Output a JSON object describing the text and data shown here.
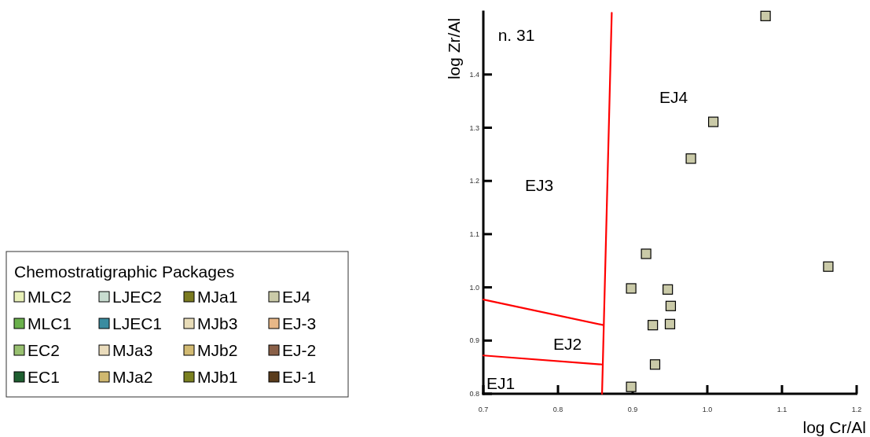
{
  "chart_data": {
    "type": "scatter",
    "xlabel": "log Cr/Al",
    "ylabel": "log Zr/Al",
    "legend_title": "Chemostratigraphic Packages",
    "xlim": [
      0.7,
      1.2
    ],
    "ylim": [
      0.8,
      1.52
    ],
    "xticks": [
      {
        "value": 0.7,
        "label": "0.7"
      },
      {
        "value": 0.8,
        "label": "0.8"
      },
      {
        "value": 0.9,
        "label": "0.9"
      },
      {
        "value": 1.0,
        "label": "1.0"
      },
      {
        "value": 1.1,
        "label": "1.1"
      },
      {
        "value": 1.2,
        "label": "1.2"
      }
    ],
    "yticks": [
      {
        "value": 0.8,
        "label": "0.8"
      },
      {
        "value": 0.9,
        "label": "0.9"
      },
      {
        "value": 1.0,
        "label": "1.0"
      },
      {
        "value": 1.1,
        "label": "1.1"
      },
      {
        "value": 1.2,
        "label": "1.2"
      },
      {
        "value": 1.3,
        "label": "1.3"
      },
      {
        "value": 1.4,
        "label": "1.4"
      }
    ],
    "grid": false,
    "legend": "left",
    "marker": "square",
    "series": [
      {
        "name": "MLC2",
        "color": "#e8f0b8"
      },
      {
        "name": "MLC1",
        "color": "#6ab04c"
      },
      {
        "name": "EC2",
        "color": "#98c070"
      },
      {
        "name": "EC1",
        "color": "#1e5e30"
      },
      {
        "name": "LJEC2",
        "color": "#c8dcd0"
      },
      {
        "name": "LJEC1",
        "color": "#3a8ca0"
      },
      {
        "name": "MJa3",
        "color": "#eadcbc"
      },
      {
        "name": "MJa2",
        "color": "#d0b870"
      },
      {
        "name": "MJa1",
        "color": "#7a7a20"
      },
      {
        "name": "MJb3",
        "color": "#e8dcb8"
      },
      {
        "name": "MJb2",
        "color": "#d2ba72"
      },
      {
        "name": "MJb1",
        "color": "#7a8020"
      },
      {
        "name": "EJ4",
        "color": "#cacaa8",
        "x": [
          1.078,
          1.008,
          0.978,
          0.918,
          1.162,
          0.898,
          0.947,
          0.951,
          0.95,
          0.927,
          0.93,
          0.898
        ],
        "values": [
          1.51,
          1.311,
          1.242,
          1.063,
          1.039,
          0.998,
          0.996,
          0.965,
          0.931,
          0.929,
          0.855,
          0.813
        ]
      },
      {
        "name": "EJ-3",
        "color": "#e8b888"
      },
      {
        "name": "EJ-2",
        "color": "#8a6048"
      },
      {
        "name": "EJ-1",
        "color": "#5a3c1c"
      },
      {
        "type": "line",
        "color": "#ff0000",
        "marker": "none",
        "line_style": "solid",
        "x": [
          0.872,
          0.859
        ],
        "values": [
          1.516,
          0.8
        ]
      },
      {
        "type": "line",
        "color": "#ff0000",
        "marker": "none",
        "line_style": "solid",
        "x": [
          0.7,
          0.861
        ],
        "values": [
          0.977,
          0.929
        ]
      },
      {
        "type": "line",
        "color": "#ff0000",
        "marker": "none",
        "line_style": "solid",
        "x": [
          0.7,
          0.859
        ],
        "values": [
          0.872,
          0.855
        ]
      }
    ],
    "annotations": [
      "n. 31",
      "EJ4",
      "EJ3",
      "EJ2",
      "EJ1"
    ]
  }
}
